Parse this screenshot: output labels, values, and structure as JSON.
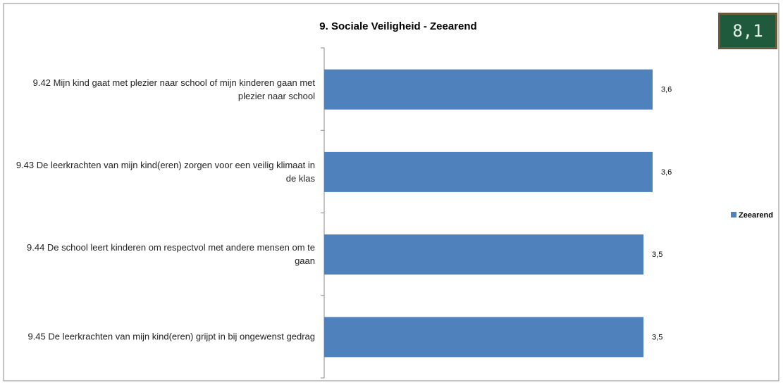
{
  "chart_data": {
    "type": "hbar",
    "title": "9. Sociale Veiligheid - Zeearend",
    "categories": [
      "9.42 Mijn kind gaat met plezier naar school of mijn kinderen gaan met plezier naar school",
      "9.43 De leerkrachten van mijn kind(eren) zorgen voor een veilig klimaat in de klas",
      "9.44 De school leert kinderen om respectvol met andere mensen om te gaan",
      "9.45 De leerkrachten van mijn kind(eren) grijpt in bij ongewenst gedrag"
    ],
    "series": [
      {
        "name": "Zeearend",
        "color": "#4f81bd",
        "values": [
          3.6,
          3.6,
          3.5,
          3.5
        ],
        "value_labels": [
          "3,6",
          "3,6",
          "3,5",
          "3,5"
        ]
      }
    ],
    "legend": "right"
  },
  "score_badge": "8,1"
}
